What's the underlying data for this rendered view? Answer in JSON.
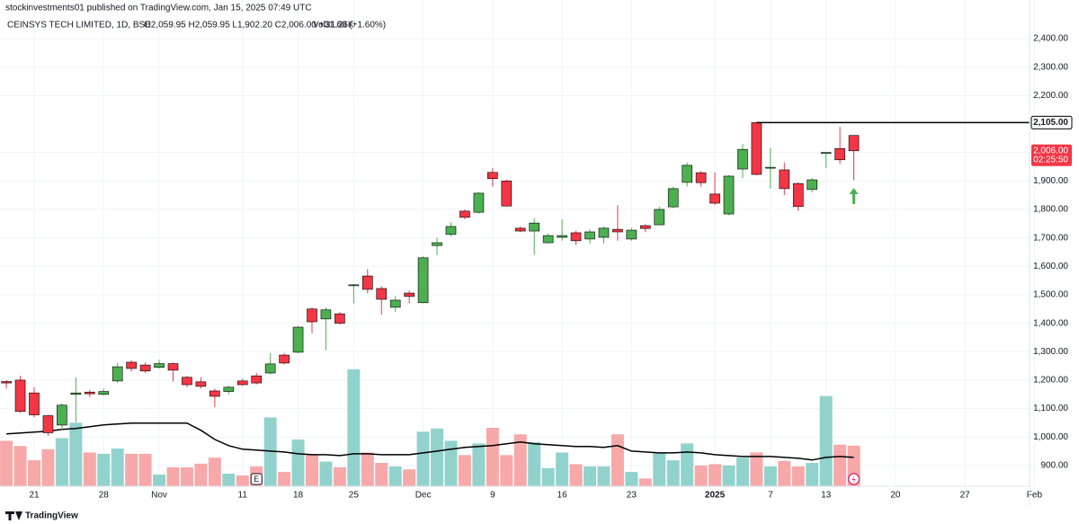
{
  "header": {
    "published": "stockinvestments01 published on TradingView.com, Jan 15, 2025 07:49 UTC",
    "symbol": "CEINSYS TECH LIMITED, 1D, BSE",
    "ohlc_label": "O2,059.95 H2,059.95 L1,902.20 C2,006.00 +31.60 (+1.60%)",
    "volume_label": "Vol31.26K"
  },
  "footer": {
    "brand": "TradingView"
  },
  "chart_data": {
    "type": "candlestick",
    "up_color": "#4caf50",
    "down_color": "#f23645",
    "up_volume_color": "#92d2cc",
    "down_volume_color": "#f7a8a8",
    "volume_ma_color": "#000000",
    "grid": true,
    "categories": [
      "",
      "",
      "21",
      "",
      "",
      "",
      "",
      "28",
      "",
      "",
      "",
      "Nov",
      "",
      "",
      "",
      "",
      "",
      "11",
      "",
      "",
      "",
      "18",
      "",
      "",
      "",
      "25",
      "",
      "",
      "",
      "",
      "Dec",
      "",
      "",
      "",
      "",
      "9",
      "",
      "",
      "",
      "",
      "16",
      "",
      "",
      "",
      "",
      "23",
      "",
      "",
      "",
      "",
      "",
      "2025",
      "",
      "",
      "",
      "7",
      "",
      "",
      "",
      "13",
      "",
      "",
      "",
      "",
      "20",
      "",
      "",
      "",
      "",
      "27",
      "",
      "",
      "",
      "",
      "Feb"
    ],
    "open": [
      1195,
      1200,
      1155,
      1075,
      1042,
      1150,
      1158,
      1150,
      1197,
      1263,
      1253,
      1245,
      1258,
      1210,
      1194,
      1162,
      1160,
      1197,
      1215,
      1225,
      1288,
      1298,
      1450,
      1415,
      1433,
      1532,
      1566,
      1522,
      1456,
      1506,
      1472,
      1673,
      1712,
      1794,
      1790,
      1930,
      1900,
      1734,
      1724,
      1683,
      1702,
      1718,
      1696,
      1702,
      1730,
      1696,
      1743,
      1746,
      1809,
      1895,
      1929,
      1854,
      1784,
      1942,
      2105,
      1945,
      1939,
      1891,
      1870,
      1998,
      2014,
      2059.95,
      null,
      null,
      null,
      null,
      null,
      null,
      null,
      null,
      null,
      null,
      null,
      null,
      null
    ],
    "high": [
      1200,
      1215,
      1175,
      1078,
      1118,
      1209,
      1165,
      1170,
      1260,
      1270,
      1262,
      1272,
      1262,
      1215,
      1210,
      1170,
      1180,
      1205,
      1225,
      1295,
      1295,
      1390,
      1455,
      1455,
      1440,
      1538,
      1590,
      1530,
      1495,
      1515,
      1635,
      1700,
      1755,
      1800,
      1860,
      1945,
      1905,
      1740,
      1770,
      1715,
      1765,
      1725,
      1730,
      1740,
      1815,
      1735,
      1748,
      1810,
      1880,
      1965,
      1935,
      1930,
      1920,
      2030,
      2105,
      2015,
      1965,
      1895,
      1910,
      2000,
      2090,
      2059.95,
      null,
      null,
      null,
      null,
      null,
      null,
      null,
      null,
      null,
      null,
      null,
      null,
      null
    ],
    "low": [
      1170,
      1085,
      1070,
      1005,
      1026,
      1052,
      1140,
      1145,
      1190,
      1230,
      1225,
      1240,
      1195,
      1175,
      1170,
      1105,
      1150,
      1180,
      1185,
      1220,
      1255,
      1295,
      1365,
      1305,
      1395,
      1470,
      1505,
      1430,
      1440,
      1470,
      1470,
      1640,
      1705,
      1765,
      1785,
      1880,
      1810,
      1720,
      1640,
      1680,
      1690,
      1675,
      1680,
      1680,
      1690,
      1690,
      1720,
      1745,
      1805,
      1880,
      1880,
      1815,
      1780,
      1910,
      1920,
      1873,
      1850,
      1795,
      1860,
      1945,
      1960,
      1902.2,
      null,
      null,
      null,
      null,
      null,
      null,
      null,
      null,
      null,
      null,
      null,
      null,
      null
    ],
    "close": [
      1190,
      1090,
      1078,
      1015,
      1112,
      1155,
      1152,
      1160,
      1247,
      1241,
      1232,
      1258,
      1235,
      1184,
      1178,
      1143,
      1175,
      1184,
      1190,
      1257,
      1260,
      1386,
      1405,
      1447,
      1400,
      1535,
      1519,
      1484,
      1481,
      1494,
      1630,
      1683,
      1740,
      1772,
      1857,
      1908,
      1812,
      1724,
      1752,
      1708,
      1708,
      1690,
      1721,
      1734,
      1721,
      1727,
      1733,
      1800,
      1873,
      1955,
      1894,
      1822,
      1917,
      2011,
      1923,
      1948,
      1873,
      1810,
      1904,
      2000,
      1974.4,
      2006,
      null,
      null,
      null,
      null,
      null,
      null,
      null,
      null,
      null,
      null,
      null,
      null,
      null
    ],
    "volume": [
      35,
      31,
      20,
      28.5,
      37,
      49,
      26,
      25,
      29,
      25,
      25,
      9,
      14.6,
      14.6,
      17.4,
      22,
      9.7,
      8.3,
      15.3,
      53,
      11,
      36,
      24,
      19,
      14.6,
      90,
      26,
      18,
      15.3,
      13,
      42,
      44.5,
      35,
      24,
      33,
      45,
      24,
      40,
      34,
      14,
      26,
      17,
      15.3,
      15.3,
      40,
      11,
      6,
      26,
      20,
      33,
      16,
      17,
      16,
      22,
      26,
      15.3,
      19.5,
      15.3,
      18,
      69.5,
      32,
      31.26,
      null,
      null,
      null,
      null,
      null,
      null,
      null,
      null,
      null,
      null,
      null,
      null,
      null
    ],
    "volume_ma": [
      40.3,
      41,
      41.7,
      42.4,
      43.8,
      44.5,
      45.9,
      47.3,
      48,
      48.7,
      48.7,
      48.7,
      48.7,
      48.7,
      43.1,
      36.1,
      31.3,
      28.5,
      27.8,
      27.1,
      26.4,
      25,
      24.3,
      24.3,
      23.6,
      25,
      25,
      24.3,
      24.3,
      24.3,
      25.7,
      27.1,
      28.5,
      29.9,
      30.6,
      31.3,
      32.7,
      34.1,
      32.7,
      32,
      31.3,
      30.6,
      30.6,
      29.9,
      31.3,
      27.1,
      26.4,
      25.7,
      25.7,
      26.4,
      25.7,
      24.3,
      23.6,
      22.9,
      22.9,
      22.9,
      22.2,
      21.5,
      20.2,
      22.2,
      22.9,
      22.2,
      null,
      null,
      null,
      null,
      null,
      null,
      null,
      null,
      null,
      null,
      null,
      null,
      null
    ],
    "ylim": [
      827,
      2536
    ],
    "yticks": [
      {
        "value": 900,
        "label": "900.00"
      },
      {
        "value": 1000,
        "label": "1,000.00"
      },
      {
        "value": 1100,
        "label": "1,100.00"
      },
      {
        "value": 1200,
        "label": "1,200.00"
      },
      {
        "value": 1300,
        "label": "1,300.00"
      },
      {
        "value": 1400,
        "label": "1,400.00"
      },
      {
        "value": 1500,
        "label": "1,500.00"
      },
      {
        "value": 1600,
        "label": "1,600.00"
      },
      {
        "value": 1700,
        "label": "1,700.00"
      },
      {
        "value": 1800,
        "label": "1,800.00"
      },
      {
        "value": 1900,
        "label": "1,900.00"
      },
      {
        "value": 2000,
        "label": "2,000.00"
      },
      {
        "value": 2200,
        "label": "2,200.00"
      },
      {
        "value": 2300,
        "label": "2,300.00"
      },
      {
        "value": 2400,
        "label": "2,400.00"
      }
    ],
    "level": {
      "value": 2105,
      "label": "2,105.00"
    },
    "last_price_label": "2,006.00",
    "countdown": "02:25:50",
    "earnings_marker": "E"
  }
}
